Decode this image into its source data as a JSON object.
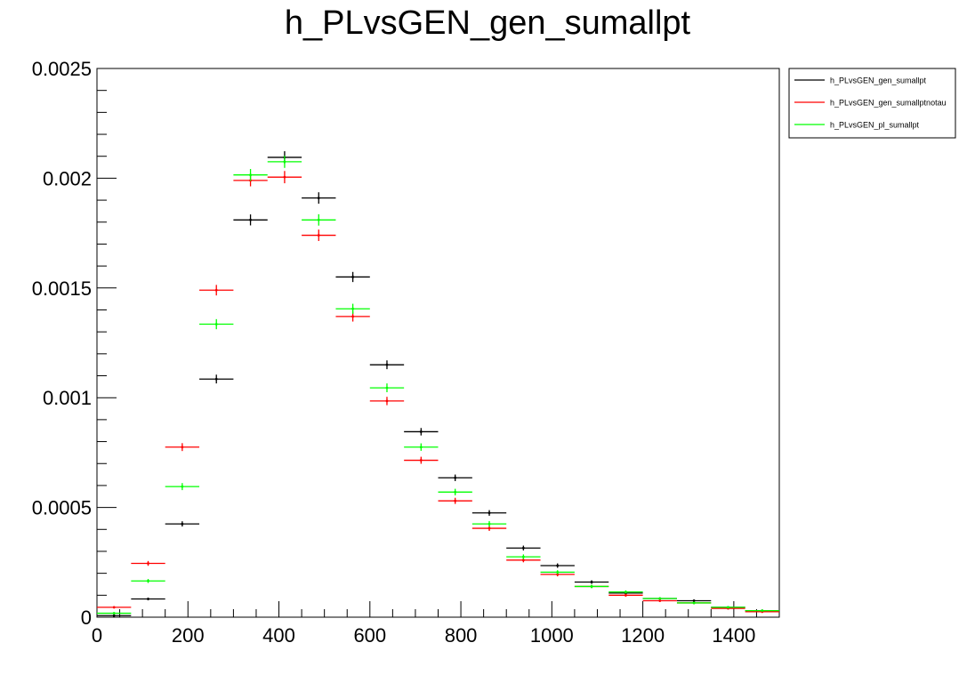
{
  "chart_data": {
    "type": "scatter",
    "title": "h_PLvsGEN_gen_sumallpt",
    "xlabel": "",
    "ylabel": "",
    "xlim": [
      0,
      1500
    ],
    "ylim": [
      0,
      0.0025
    ],
    "bin_width": 75,
    "x": [
      37.5,
      112.5,
      187.5,
      262.5,
      337.5,
      412.5,
      487.5,
      562.5,
      637.5,
      712.5,
      787.5,
      862.5,
      937.5,
      1012.5,
      1087.5,
      1162.5,
      1237.5,
      1312.5,
      1387.5,
      1462.5
    ],
    "x_ticks": [
      0,
      200,
      400,
      600,
      800,
      1000,
      1200,
      1400
    ],
    "x_tick_labels": [
      "0",
      "200",
      "400",
      "600",
      "800",
      "1000",
      "1200",
      "1400"
    ],
    "y_ticks": [
      0,
      0.0005,
      0.001,
      0.0015,
      0.002,
      0.0025
    ],
    "y_tick_labels": [
      "0",
      "0.0005",
      "0.001",
      "0.0015",
      "0.002",
      "0.0025"
    ],
    "legend_position": "top-right outside",
    "series": [
      {
        "name": "h_PLvsGEN_gen_sumallpt",
        "color": "#000000",
        "values": [
          7e-06,
          8.3e-05,
          0.000425,
          0.001085,
          0.00181,
          0.002095,
          0.00191,
          0.00155,
          0.00115,
          0.000845,
          0.000635,
          0.000475,
          0.000315,
          0.000235,
          0.00016,
          0.00011,
          8.5e-05,
          7.5e-05,
          4.5e-05,
          3e-05
        ],
        "errors": [
          3e-06,
          6e-06,
          1.2e-05,
          2e-05,
          2.5e-05,
          2.8e-05,
          2.6e-05,
          2.3e-05,
          2e-05,
          1.7e-05,
          1.5e-05,
          1.3e-05,
          1.1e-05,
          1e-05,
          8e-06,
          7e-06,
          6e-06,
          6e-06,
          5e-06,
          4e-06
        ]
      },
      {
        "name": "h_PLvsGEN_gen_sumallptnotau",
        "color": "#ff0000",
        "values": [
          4.5e-05,
          0.000245,
          0.000775,
          0.00149,
          0.00199,
          0.002005,
          0.00174,
          0.00137,
          0.000985,
          0.000715,
          0.00053,
          0.000405,
          0.00026,
          0.000195,
          0.00014,
          0.0001,
          7.5e-05,
          6.5e-05,
          4e-05,
          2.5e-05
        ],
        "errors": [
          5e-06,
          1.1e-05,
          1.8e-05,
          2.4e-05,
          2.7e-05,
          2.8e-05,
          2.6e-05,
          2.3e-05,
          1.9e-05,
          1.6e-05,
          1.4e-05,
          1.2e-05,
          1e-05,
          9e-06,
          7e-06,
          6e-06,
          5e-06,
          5e-06,
          4e-06,
          3e-06
        ]
      },
      {
        "name": "h_PLvsGEN_pl_sumallpt",
        "color": "#00ff00",
        "values": [
          1.8e-05,
          0.000165,
          0.000595,
          0.001335,
          0.002015,
          0.002075,
          0.00181,
          0.001405,
          0.001045,
          0.000775,
          0.00057,
          0.000425,
          0.000275,
          0.000205,
          0.00014,
          0.000115,
          8.5e-05,
          6.5e-05,
          4.5e-05,
          3e-05
        ],
        "errors": [
          4e-06,
          9e-06,
          1.6e-05,
          2.3e-05,
          2.7e-05,
          2.8e-05,
          2.6e-05,
          2.3e-05,
          2e-05,
          1.7e-05,
          1.5e-05,
          1.3e-05,
          1.1e-05,
          9e-06,
          8e-06,
          7e-06,
          6e-06,
          5e-06,
          4e-06,
          3e-06
        ]
      }
    ]
  }
}
